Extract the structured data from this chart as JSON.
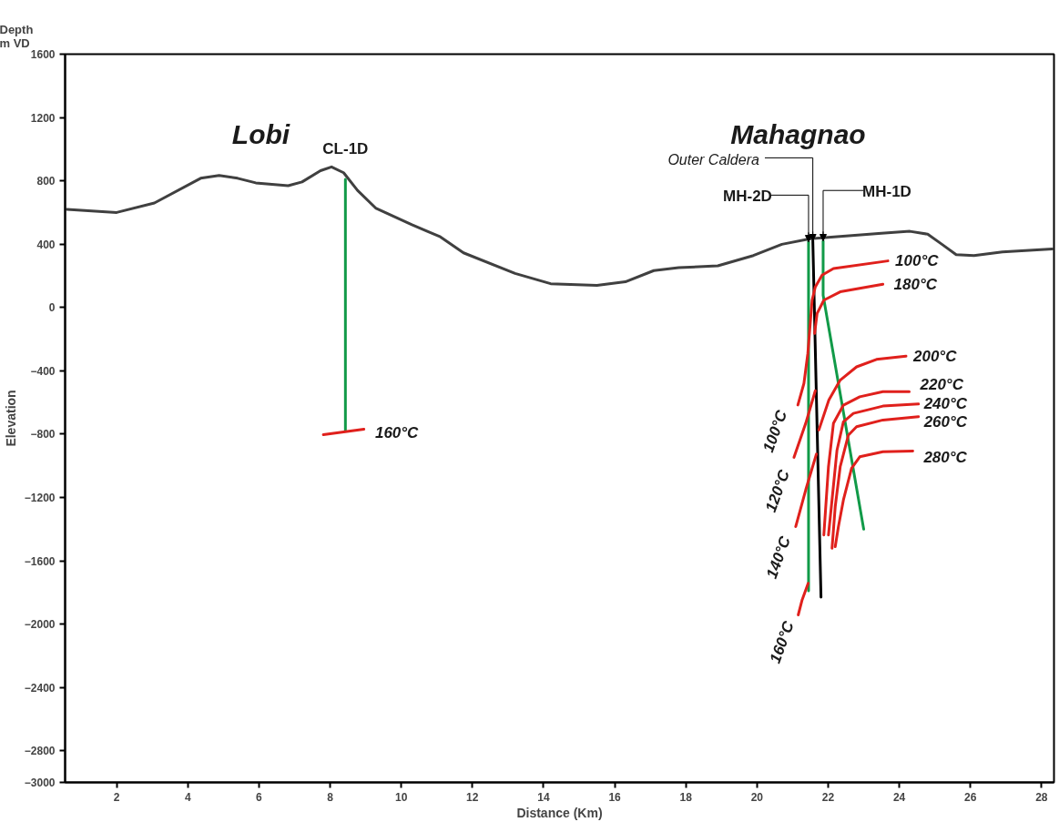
{
  "chart_data": {
    "type": "line",
    "xlabel": "Distance (Km)",
    "ylabel": "Elevation",
    "xlim": [
      0.55,
      28.35
    ],
    "ylim": [
      -3000,
      1600
    ],
    "xticks": [
      2,
      4,
      6,
      8,
      10,
      12,
      14,
      16,
      18,
      20,
      22,
      24,
      26,
      28
    ],
    "yticks": [
      1600,
      1200,
      800,
      400,
      0,
      -400,
      -800,
      -1200,
      -1600,
      -2000,
      -2400,
      -2800,
      -3000
    ],
    "grid": false,
    "series": [
      {
        "color": "#404040",
        "x": [
          0.6,
          2,
          3.06,
          4.36,
          4.88,
          5.4,
          5.91,
          6.82,
          7.21,
          7.73,
          8.04,
          8.38,
          8.77,
          9.28,
          10.3,
          11.1,
          11.75,
          13.2,
          14.2,
          15.5,
          16.3,
          17.1,
          17.8,
          18.9,
          19.9,
          20.7,
          21.5,
          22.5,
          23.5,
          24.3,
          24.8,
          25.2,
          25.6,
          26.1,
          26.9,
          28.3
        ],
        "values": [
          620,
          600,
          660,
          816,
          834,
          816,
          787,
          769,
          793,
          864,
          888,
          851,
          740,
          628,
          522,
          446,
          345,
          215,
          150,
          139,
          162,
          233,
          251,
          263,
          328,
          399,
          434,
          452,
          469,
          481,
          463,
          399,
          334,
          328,
          351,
          369
        ]
      },
      {
        "color": "#119a48",
        "x": [
          8.43,
          8.43
        ],
        "values": [
          810,
          -780
        ]
      },
      {
        "color": "#119a48",
        "x": [
          21.45,
          21.45
        ],
        "values": [
          415,
          -1790
        ]
      },
      {
        "color": "#000000",
        "x": [
          21.57,
          21.8
        ],
        "values": [
          421,
          -1830
        ]
      },
      {
        "color": "#119a48",
        "x": [
          21.86,
          21.86,
          23.0
        ],
        "values": [
          421,
          78,
          -1400
        ]
      },
      {
        "color": "#e0201c",
        "x": [
          7.81,
          8.95
        ],
        "values": [
          -804,
          -769
        ]
      },
      {
        "color": "#e0201c",
        "x": [
          23.68,
          22.15,
          21.83,
          21.64,
          21.55,
          21.49,
          21.43,
          21.32,
          21.15
        ],
        "values": [
          294,
          246,
          204,
          130,
          46,
          -122,
          -290,
          -480,
          -616
        ]
      },
      {
        "color": "#e0201c",
        "x": [
          23.54,
          22.34,
          21.88,
          21.69,
          21.62
        ],
        "values": [
          147,
          99,
          46,
          -38,
          -164
        ]
      },
      {
        "color": "#e0201c",
        "x": [
          24.19,
          23.36,
          22.8,
          22.34,
          22.02,
          21.74
        ],
        "values": [
          -307,
          -328,
          -375,
          -459,
          -585,
          -774
        ]
      },
      {
        "color": "#e0201c",
        "x": [
          21.64,
          21.37,
          21.04
        ],
        "values": [
          -526,
          -732,
          -947
        ]
      },
      {
        "color": "#e0201c",
        "x": [
          21.67,
          21.37,
          21.09
        ],
        "values": [
          -926,
          -1153,
          -1384
        ]
      },
      {
        "color": "#e0201c",
        "x": [
          21.44,
          21.27,
          21.16
        ],
        "values": [
          -1742,
          -1847,
          -1942
        ]
      },
      {
        "color": "#e0201c",
        "x": [
          24.28,
          23.54,
          22.89,
          22.43,
          22.15,
          22.01,
          21.88
        ],
        "values": [
          -532,
          -532,
          -564,
          -617,
          -732,
          -1006,
          -1437
        ]
      },
      {
        "color": "#e0201c",
        "x": [
          24.54,
          23.54,
          22.71,
          22.43,
          22.25,
          22.11,
          22.01
        ],
        "values": [
          -610,
          -623,
          -669,
          -722,
          -901,
          -1216,
          -1437
        ]
      },
      {
        "color": "#e0201c",
        "x": [
          24.54,
          23.54,
          22.8,
          22.57,
          22.34,
          22.2,
          22.11
        ],
        "values": [
          -690,
          -711,
          -753,
          -806,
          -1006,
          -1258,
          -1521
        ]
      },
      {
        "color": "#e0201c",
        "x": [
          24.38,
          23.54,
          22.89,
          22.66,
          22.43,
          22.29,
          22.2
        ],
        "values": [
          -907,
          -911,
          -943,
          -1016,
          -1216,
          -1384,
          -1511
        ]
      }
    ],
    "annotations": [
      "Depth\nm VD",
      "Lobi",
      "Mahagnao",
      {
        "text": "CL-1D",
        "x": 8.43,
        "y": 810
      },
      {
        "text": "Outer Caldera",
        "x": 21.57,
        "y": 421
      },
      {
        "text": "MH-2D",
        "x": 21.45,
        "y": 415
      },
      {
        "text": "MH-1D",
        "x": 21.86,
        "y": 421
      },
      {
        "text": "160°C",
        "x": 8.95,
        "y": -769
      },
      {
        "text": "100°C",
        "x": 23.68,
        "y": 294
      },
      {
        "text": "180°C",
        "x": 23.54,
        "y": 147
      },
      {
        "text": "200°C",
        "x": 24.19,
        "y": -307
      },
      {
        "text": "220°C",
        "x": 24.28,
        "y": -532
      },
      {
        "text": "240°C",
        "x": 24.54,
        "y": -610
      },
      {
        "text": "260°C",
        "x": 24.54,
        "y": -690
      },
      {
        "text": "280°C",
        "x": 24.38,
        "y": -907
      },
      {
        "text": "100°C",
        "x": 21.15,
        "y": -616
      },
      {
        "text": "120°C",
        "x": 21.04,
        "y": -947
      },
      {
        "text": "140°C",
        "x": 21.09,
        "y": -1384
      },
      {
        "text": "160°C",
        "x": 21.16,
        "y": -1942
      }
    ]
  }
}
